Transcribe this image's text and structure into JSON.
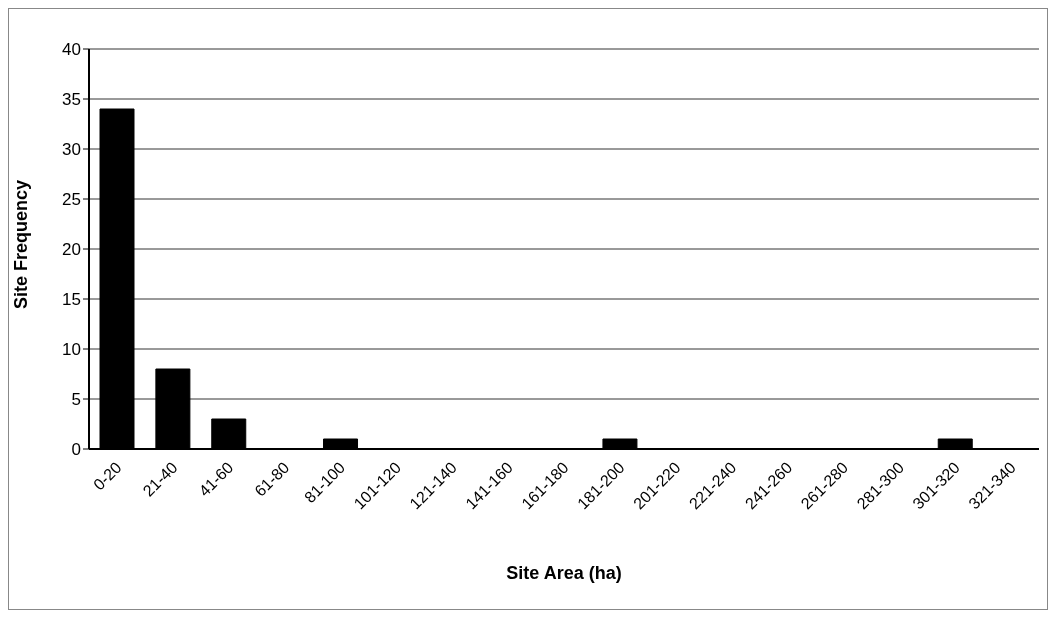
{
  "chart_data": {
    "type": "bar",
    "xlabel": "Site Area (ha)",
    "ylabel": "Site Frequency",
    "categories": [
      "0-20",
      "21-40",
      "41-60",
      "61-80",
      "81-100",
      "101-120",
      "121-140",
      "141-160",
      "161-180",
      "181-200",
      "201-220",
      "221-240",
      "241-260",
      "261-280",
      "281-300",
      "301-320",
      "321-340"
    ],
    "values": [
      34,
      8,
      3,
      0,
      1,
      0,
      0,
      0,
      0,
      1,
      0,
      0,
      0,
      0,
      0,
      1,
      0
    ],
    "color": "#000000",
    "ylim": [
      0,
      40
    ],
    "yticks": [
      0,
      5,
      10,
      15,
      20,
      25,
      30,
      35,
      40
    ],
    "grid": "y"
  }
}
